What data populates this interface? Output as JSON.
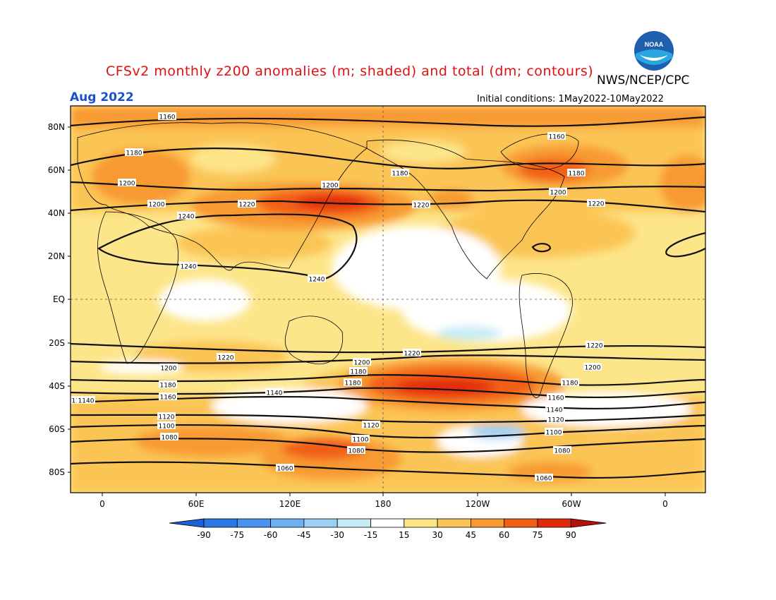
{
  "header": {
    "title": "CFSv2 monthly z200 anomalies (m; shaded) and total (dm; contours)",
    "agency": "NWS/NCEP/CPC",
    "month": "Aug 2022",
    "initial_conditions": "Initial conditions: 1May2022-10May2022",
    "logo_text": "NOAA"
  },
  "map": {
    "lat_ticks": [
      "80N",
      "60N",
      "40N",
      "20N",
      "EQ",
      "20S",
      "40S",
      "60S",
      "80S"
    ],
    "lon_ticks": [
      "0",
      "60E",
      "120E",
      "180",
      "120W",
      "60W",
      "0"
    ],
    "contour_labels": [
      "1160",
      "1160",
      "1180",
      "1180",
      "1180",
      "1200",
      "1200",
      "1200",
      "1200",
      "1220",
      "1220",
      "1220",
      "1240",
      "1240",
      "1240",
      "1220",
      "1220",
      "1220",
      "1200",
      "1200",
      "1200",
      "1180",
      "1180",
      "1180",
      "1180",
      "1160",
      "1160",
      "1160",
      "1140",
      "1140",
      "1140",
      "1120",
      "1120",
      "1120",
      "1100",
      "1100",
      "1100",
      "1080",
      "1080",
      "1080",
      "1060",
      "1060"
    ]
  },
  "colorbar": {
    "labels": [
      "-90",
      "-75",
      "-60",
      "-45",
      "-30",
      "-15",
      "15",
      "30",
      "45",
      "60",
      "75",
      "90"
    ],
    "colors": [
      "#1f5fd8",
      "#2a77e6",
      "#4a93ee",
      "#6eb0f2",
      "#9bd0f4",
      "#c6ecf6",
      "#ffffff",
      "#fde58a",
      "#fbc555",
      "#f89a32",
      "#f25f14",
      "#e2290c",
      "#b5120c"
    ]
  },
  "colors": {
    "title": "#e01010",
    "month": "#1a4fd0",
    "anomaly_15_30": "#fde58a",
    "anomaly_30_45": "#fbc555",
    "anomaly_45_60": "#f89a32",
    "anomaly_60_75": "#f25f14",
    "anomaly_75_90": "#e2290c",
    "anomaly_neg_15_30": "#c6ecf6",
    "anomaly_neg_30_45": "#9bd0f4"
  }
}
